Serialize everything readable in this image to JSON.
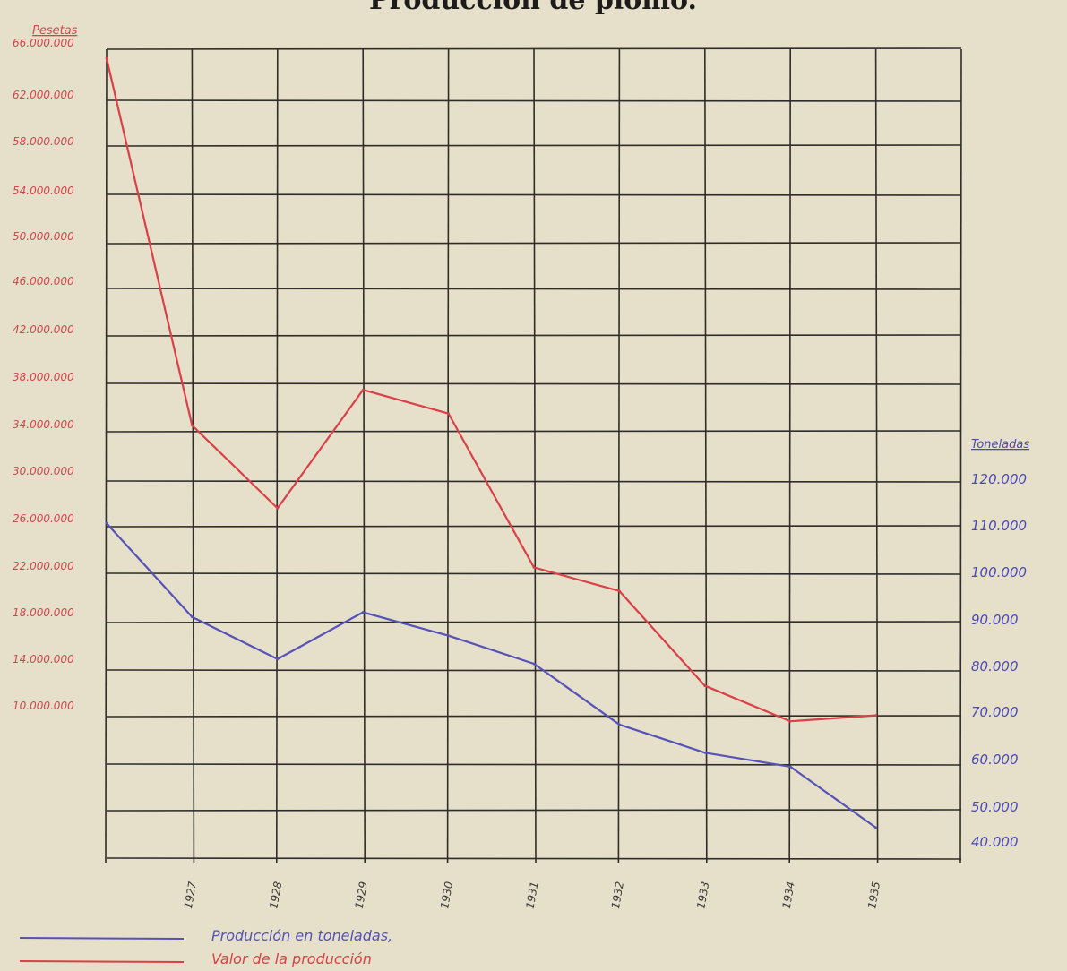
{
  "chart_data": {
    "type": "line",
    "title": "Producción de plomo.",
    "left_axis": {
      "unit": "Pesetas",
      "ticks": [
        "66.000.000",
        "62.000.000",
        "58.000.000",
        "54.000.000",
        "50.000.000",
        "46.000.000",
        "42.000.000",
        "38.000.000",
        "34.000.000",
        "30.000.000",
        "26.000.000",
        "22.000.000",
        "18.000.000",
        "14.000.000",
        "10.000.000"
      ],
      "ylim": [
        10000000,
        66000000
      ]
    },
    "right_axis": {
      "unit": "Toneladas",
      "ticks": [
        "120.000",
        "110.000",
        "100.000",
        "90.000",
        "80.000",
        "70.000",
        "60.000",
        "50.000",
        "40.000"
      ],
      "ylim": [
        40000,
        120000
      ]
    },
    "x": [
      "",
      "1927",
      "1928",
      "1929",
      "1930",
      "1931",
      "1932",
      "1933",
      "1934",
      "1935"
    ],
    "series": [
      {
        "name": "Producción en toneladas,",
        "axis": "right",
        "color": "#5552b8",
        "values": [
          110000,
          90000,
          81000,
          91000,
          86000,
          80000,
          67000,
          61000,
          58000,
          45000
        ]
      },
      {
        "name": "Valor de la producción",
        "axis": "left",
        "color": "#d94048",
        "values": [
          65000000,
          34000000,
          27000000,
          37000000,
          35000000,
          22000000,
          20000000,
          12000000,
          9000000,
          9500000
        ]
      }
    ]
  }
}
